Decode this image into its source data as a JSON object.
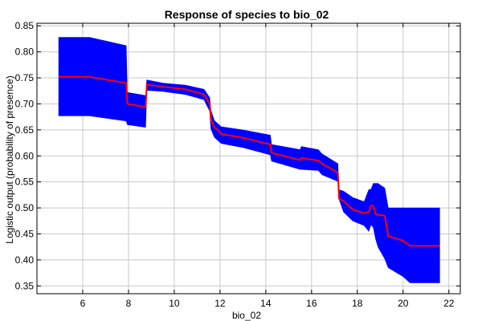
{
  "chart_data": {
    "type": "area",
    "title": "Response of species to bio_02",
    "xlabel": "bio_02",
    "ylabel": "Logistic output (probability of presence)",
    "xlim": [
      4,
      22.5
    ],
    "ylim": [
      0.335,
      0.855
    ],
    "x_ticks": [
      6,
      8,
      10,
      12,
      14,
      16,
      18,
      20,
      22
    ],
    "y_ticks": [
      0.35,
      0.4,
      0.45,
      0.5,
      0.55,
      0.6,
      0.65,
      0.7,
      0.75,
      0.8,
      0.85
    ],
    "x_tick_labels": [
      "6",
      "8",
      "10",
      "12",
      "14",
      "16",
      "18",
      "20",
      "22"
    ],
    "y_tick_labels": [
      "0.35",
      "0.40",
      "0.45",
      "0.50",
      "0.55",
      "0.60",
      "0.65",
      "0.70",
      "0.75",
      "0.80",
      "0.85"
    ],
    "grid": true,
    "colors": {
      "band": "#0000ff",
      "line": "#ff0000",
      "grid": "#c8c8c8"
    },
    "series": [
      {
        "role": "mean",
        "x": [
          4.95,
          6.3,
          7.9,
          7.95,
          8.75,
          8.8,
          9.5,
          10.5,
          11.3,
          11.55,
          11.6,
          11.75,
          11.95,
          12.05,
          13.0,
          14.2,
          14.25,
          15.5,
          15.55,
          16.3,
          16.45,
          17.15,
          17.2,
          17.4,
          17.8,
          18.3,
          18.5,
          18.6,
          18.7,
          18.8,
          18.9,
          19.2,
          19.35,
          20.0,
          20.3,
          21.6
        ],
        "y": [
          0.752,
          0.752,
          0.74,
          0.7,
          0.694,
          0.737,
          0.733,
          0.728,
          0.718,
          0.7,
          0.67,
          0.655,
          0.648,
          0.642,
          0.635,
          0.622,
          0.606,
          0.592,
          0.596,
          0.591,
          0.585,
          0.568,
          0.518,
          0.513,
          0.497,
          0.49,
          0.492,
          0.505,
          0.504,
          0.488,
          0.487,
          0.485,
          0.446,
          0.437,
          0.427,
          0.427
        ]
      },
      {
        "role": "upper",
        "x": [
          4.95,
          6.3,
          7.9,
          7.95,
          8.75,
          8.8,
          9.5,
          10.5,
          11.3,
          11.55,
          11.6,
          11.75,
          11.95,
          12.05,
          13.0,
          14.2,
          14.25,
          15.5,
          15.55,
          16.3,
          16.45,
          17.15,
          17.2,
          17.4,
          17.8,
          18.3,
          18.5,
          18.6,
          18.7,
          18.8,
          18.9,
          19.2,
          19.35,
          20.0,
          20.3,
          21.6
        ],
        "y": [
          0.828,
          0.828,
          0.812,
          0.722,
          0.716,
          0.746,
          0.74,
          0.736,
          0.728,
          0.712,
          0.688,
          0.668,
          0.66,
          0.656,
          0.65,
          0.64,
          0.622,
          0.612,
          0.618,
          0.612,
          0.604,
          0.585,
          0.535,
          0.532,
          0.52,
          0.512,
          0.535,
          0.536,
          0.547,
          0.547,
          0.547,
          0.538,
          0.5,
          0.5,
          0.5,
          0.5
        ]
      },
      {
        "role": "lower",
        "x": [
          4.95,
          6.3,
          7.9,
          7.95,
          8.75,
          8.8,
          9.5,
          10.5,
          11.3,
          11.55,
          11.6,
          11.75,
          11.95,
          12.05,
          13.0,
          14.2,
          14.25,
          15.5,
          15.55,
          16.3,
          16.45,
          17.15,
          17.2,
          17.4,
          17.8,
          18.3,
          18.5,
          18.6,
          18.7,
          18.8,
          18.9,
          19.2,
          19.35,
          20.0,
          20.3,
          21.6
        ],
        "y": [
          0.677,
          0.677,
          0.667,
          0.66,
          0.655,
          0.726,
          0.724,
          0.718,
          0.708,
          0.686,
          0.652,
          0.636,
          0.628,
          0.624,
          0.616,
          0.602,
          0.59,
          0.574,
          0.574,
          0.572,
          0.564,
          0.551,
          0.517,
          0.492,
          0.475,
          0.466,
          0.455,
          0.468,
          0.462,
          0.44,
          0.425,
          0.402,
          0.385,
          0.368,
          0.356,
          0.356
        ]
      }
    ]
  }
}
